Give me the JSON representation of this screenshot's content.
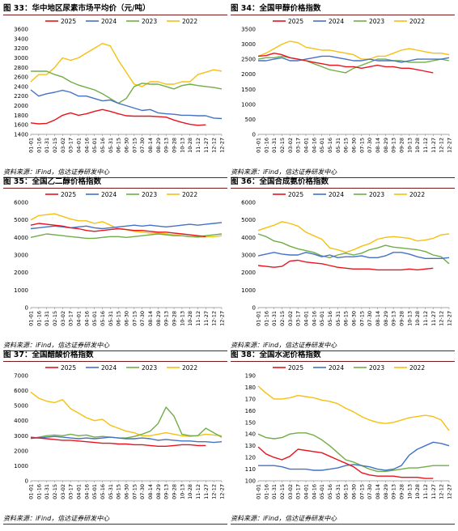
{
  "colors": {
    "2025": "#e8141e",
    "2024": "#4472c4",
    "2023": "#70ad47",
    "2022": "#f5c012"
  },
  "charts": [
    {
      "id": "fig33",
      "title": "图 33：华中地区尿素市场平均价（元/吨）",
      "source": "资料来源：iFind，信达证券研发中心",
      "chart_data": {
        "type": "line",
        "title": "华中地区尿素市场平均价（元/吨）",
        "x_ticks": [
          "01-01",
          "01-16",
          "01-31",
          "02-15",
          "03-02",
          "03-17",
          "04-01",
          "04-16",
          "05-01",
          "05-16",
          "05-31",
          "06-15",
          "06-30",
          "07-15",
          "07-30",
          "08-14",
          "08-29",
          "09-13",
          "09-28",
          "10-13",
          "10-28",
          "11-12",
          "11-27",
          "12-12",
          "12-27"
        ],
        "ylim": [
          1400,
          3600
        ],
        "y_ticks": [
          1400,
          1600,
          1800,
          2000,
          2200,
          2400,
          2600,
          2800,
          3000,
          3200,
          3400,
          3600
        ],
        "legend": "top",
        "series": [
          {
            "name": "2025",
            "values": [
              1640,
              1620,
              1630,
              1700,
              1800,
              1850,
              1800,
              1830,
              1880,
              1920,
              1880,
              1830,
              1790,
              1780,
              1780,
              1780,
              1770,
              1760,
              1700,
              1650,
              1610,
              1590,
              1600
            ]
          },
          {
            "name": "2024",
            "values": [
              2330,
              2200,
              2250,
              2280,
              2320,
              2280,
              2200,
              2200,
              2150,
              2100,
              2120,
              2050,
              2000,
              1950,
              1900,
              1920,
              1850,
              1830,
              1820,
              1800,
              1800,
              1790,
              1790,
              1740,
              1730
            ]
          },
          {
            "name": "2023",
            "values": [
              2720,
              2720,
              2720,
              2650,
              2600,
              2500,
              2430,
              2380,
              2330,
              2250,
              2150,
              2050,
              2150,
              2400,
              2470,
              2450,
              2450,
              2400,
              2350,
              2420,
              2450,
              2420,
              2400,
              2380,
              2350
            ]
          },
          {
            "name": "2022",
            "values": [
              2500,
              2650,
              2650,
              2800,
              3000,
              2950,
              3000,
              3100,
              3200,
              3300,
              3250,
              2950,
              2700,
              2450,
              2400,
              2500,
              2500,
              2450,
              2450,
              2500,
              2500,
              2650,
              2700,
              2750,
              2720
            ]
          }
        ]
      }
    },
    {
      "id": "fig34",
      "title": "图 34：全国甲醇价格指数",
      "source": "资料来源：iFind，信达证券研发中心",
      "chart_data": {
        "type": "line",
        "title": "全国甲醇价格指数",
        "x_ticks": [
          "01-01",
          "01-16",
          "01-31",
          "02-15",
          "03-02",
          "03-17",
          "04-01",
          "04-16",
          "05-01",
          "05-16",
          "05-31",
          "06-15",
          "06-30",
          "07-15",
          "07-30",
          "08-14",
          "08-29",
          "09-13",
          "09-28",
          "10-13",
          "10-28",
          "11-12",
          "11-27",
          "12-12",
          "12-27"
        ],
        "ylim": [
          0,
          3500
        ],
        "y_ticks": [
          0,
          500,
          1000,
          1500,
          2000,
          2500,
          3000,
          3500
        ],
        "legend": "top",
        "series": [
          {
            "name": "2025",
            "values": [
              2600,
              2620,
              2700,
              2650,
              2550,
              2500,
              2450,
              2400,
              2350,
              2300,
              2300,
              2250,
              2250,
              2200,
              2250,
              2300,
              2250,
              2250,
              2200,
              2200,
              2150,
              2100,
              2050
            ]
          },
          {
            "name": "2024",
            "values": [
              2450,
              2450,
              2500,
              2550,
              2450,
              2450,
              2500,
              2550,
              2600,
              2600,
              2550,
              2500,
              2450,
              2450,
              2500,
              2450,
              2450,
              2450,
              2400,
              2450,
              2500,
              2500,
              2500,
              2500,
              2550
            ]
          },
          {
            "name": "2023",
            "values": [
              2500,
              2550,
              2550,
              2600,
              2550,
              2500,
              2450,
              2350,
              2250,
              2150,
              2100,
              2050,
              2200,
              2300,
              2400,
              2500,
              2500,
              2450,
              2450,
              2400,
              2400,
              2400,
              2450,
              2500,
              2450
            ]
          },
          {
            "name": "2022",
            "values": [
              2600,
              2700,
              2850,
              3000,
              3100,
              3050,
              2900,
              2850,
              2800,
              2800,
              2750,
              2700,
              2650,
              2500,
              2500,
              2600,
              2600,
              2700,
              2800,
              2850,
              2800,
              2750,
              2700,
              2700,
              2650
            ]
          }
        ]
      }
    },
    {
      "id": "fig35",
      "title": "图 35：全国乙二醇价格指数",
      "source": "资料来源：iFind，信达证券研发中心",
      "chart_data": {
        "type": "line",
        "title": "全国乙二醇价格指数",
        "x_ticks": [
          "01-01",
          "01-16",
          "01-31",
          "02-15",
          "03-02",
          "03-17",
          "04-01",
          "04-16",
          "05-01",
          "05-16",
          "05-31",
          "06-15",
          "06-30",
          "07-15",
          "07-30",
          "08-14",
          "08-29",
          "09-13",
          "09-28",
          "10-13",
          "10-28",
          "11-12",
          "11-27",
          "12-12",
          "12-27"
        ],
        "ylim": [
          0,
          6000
        ],
        "y_ticks": [
          0,
          1000,
          2000,
          3000,
          4000,
          5000,
          6000
        ],
        "legend": "top",
        "series": [
          {
            "name": "2025",
            "values": [
              4700,
              4800,
              4750,
              4700,
              4650,
              4550,
              4500,
              4400,
              4350,
              4400,
              4450,
              4500,
              4450,
              4400,
              4400,
              4350,
              4300,
              4300,
              4250,
              4200,
              4150,
              4100,
              4050
            ]
          },
          {
            "name": "2024",
            "values": [
              4500,
              4550,
              4600,
              4650,
              4600,
              4550,
              4600,
              4650,
              4550,
              4500,
              4550,
              4600,
              4650,
              4700,
              4650,
              4700,
              4650,
              4600,
              4650,
              4700,
              4750,
              4700,
              4750,
              4800,
              4850
            ]
          },
          {
            "name": "2023",
            "values": [
              4000,
              4100,
              4200,
              4150,
              4100,
              4050,
              4000,
              3950,
              3950,
              4000,
              4050,
              4050,
              4000,
              4050,
              4100,
              4150,
              4200,
              4150,
              4100,
              4100,
              4050,
              4050,
              4100,
              4150,
              4200
            ]
          },
          {
            "name": "2022",
            "values": [
              5000,
              5250,
              5300,
              5350,
              5200,
              5050,
              4950,
              4950,
              4800,
              4900,
              4700,
              4500,
              4450,
              4350,
              4300,
              4250,
              4250,
              4200,
              4150,
              4100,
              4050,
              4000,
              4050,
              4050,
              4100
            ]
          }
        ]
      }
    },
    {
      "id": "fig36",
      "title": "图 36：全国合成氨价格指数",
      "source": "资料来源：iFind，信达证券研发中心",
      "chart_data": {
        "type": "line",
        "title": "全国合成氨价格指数",
        "x_ticks": [
          "01-01",
          "01-16",
          "01-31",
          "02-15",
          "03-02",
          "03-17",
          "04-01",
          "04-16",
          "05-01",
          "05-16",
          "05-31",
          "06-15",
          "06-30",
          "07-15",
          "07-30",
          "08-14",
          "08-29",
          "09-13",
          "09-28",
          "10-13",
          "10-28",
          "11-12",
          "11-27",
          "12-12",
          "12-27"
        ],
        "ylim": [
          0,
          6000
        ],
        "y_ticks": [
          0,
          1000,
          2000,
          3000,
          4000,
          5000,
          6000
        ],
        "legend": "top",
        "series": [
          {
            "name": "2025",
            "values": [
              2400,
              2350,
              2300,
              2350,
              2650,
              2700,
              2600,
              2550,
              2500,
              2400,
              2300,
              2250,
              2200,
              2200,
              2200,
              2150,
              2150,
              2150,
              2150,
              2200,
              2150,
              2200,
              2250
            ]
          },
          {
            "name": "2024",
            "values": [
              2950,
              3050,
              3150,
              3050,
              3000,
              3000,
              3150,
              3050,
              2900,
              3000,
              2850,
              2900,
              2900,
              2950,
              2850,
              2850,
              2950,
              3150,
              3150,
              3050,
              2900,
              2800,
              2800,
              2800,
              2850
            ]
          },
          {
            "name": "2023",
            "values": [
              4200,
              4050,
              3800,
              3700,
              3500,
              3350,
              3250,
              3150,
              2950,
              2850,
              3000,
              3100,
              3000,
              3100,
              3300,
              3400,
              3550,
              3450,
              3400,
              3350,
              3300,
              3200,
              3000,
              2900,
              2500
            ]
          },
          {
            "name": "2022",
            "values": [
              4400,
              4550,
              4700,
              4900,
              4800,
              4650,
              4300,
              4100,
              3900,
              3400,
              3300,
              3150,
              3300,
              3500,
              3650,
              3900,
              4000,
              4050,
              4000,
              3950,
              3800,
              3850,
              3950,
              4150,
              4200
            ]
          }
        ]
      }
    },
    {
      "id": "fig37",
      "title": "图 37：全国醋酸价格指数",
      "source": "资料来源：iFind，信达证券研发中心",
      "chart_data": {
        "type": "line",
        "title": "全国醋酸价格指数",
        "x_ticks": [
          "01-01",
          "01-16",
          "01-31",
          "02-15",
          "03-02",
          "03-17",
          "04-01",
          "04-16",
          "05-01",
          "05-16",
          "05-31",
          "06-15",
          "06-30",
          "07-15",
          "07-30",
          "08-14",
          "08-29",
          "09-13",
          "09-28",
          "10-13",
          "10-28",
          "11-12",
          "11-27",
          "12-12",
          "12-27"
        ],
        "ylim": [
          0,
          7000
        ],
        "y_ticks": [
          0,
          1000,
          2000,
          3000,
          4000,
          5000,
          6000,
          7000
        ],
        "legend": "top",
        "series": [
          {
            "name": "2025",
            "values": [
              2850,
              2850,
              2800,
              2750,
              2700,
              2700,
              2650,
              2600,
              2550,
              2500,
              2500,
              2450,
              2450,
              2400,
              2400,
              2350,
              2300,
              2300,
              2350,
              2400,
              2400,
              2350,
              2350
            ]
          },
          {
            "name": "2024",
            "values": [
              2900,
              2850,
              2900,
              2950,
              2900,
              2850,
              2800,
              2850,
              2800,
              2850,
              2900,
              2850,
              2800,
              2800,
              2850,
              2800,
              2700,
              2750,
              2700,
              2650,
              2650,
              2600,
              2600,
              2550,
              2600
            ]
          },
          {
            "name": "2023",
            "values": [
              2800,
              2900,
              3000,
              3050,
              3000,
              3100,
              3000,
              3050,
              2900,
              2950,
              2900,
              2850,
              2850,
              2950,
              3100,
              3300,
              3800,
              4900,
              4300,
              3100,
              3000,
              3000,
              3500,
              3200,
              2900
            ]
          },
          {
            "name": "2022",
            "values": [
              5900,
              5500,
              5300,
              5200,
              5400,
              4800,
              4500,
              4200,
              4000,
              4100,
              3700,
              3500,
              3300,
              3200,
              3000,
              3000,
              3100,
              3200,
              3100,
              3000,
              2950,
              3000,
              3100,
              3050,
              3000
            ]
          }
        ]
      }
    },
    {
      "id": "fig38",
      "title": "图 38：全国水泥价格指数",
      "source": "资料来源：iFind，信达证券研发中心",
      "chart_data": {
        "type": "line",
        "title": "全国水泥价格指数",
        "x_ticks": [
          "01-01",
          "01-16",
          "01-31",
          "02-15",
          "03-02",
          "03-17",
          "04-01",
          "04-16",
          "05-01",
          "05-16",
          "05-31",
          "06-15",
          "06-30",
          "07-15",
          "07-30",
          "08-14",
          "08-29",
          "09-13",
          "09-28",
          "10-13",
          "10-28",
          "11-12",
          "11-27",
          "12-12",
          "12-27"
        ],
        "ylim": [
          100,
          190
        ],
        "y_ticks": [
          100,
          110,
          120,
          130,
          140,
          150,
          160,
          170,
          180,
          190
        ],
        "legend": "top",
        "series": [
          {
            "name": "2025",
            "values": [
              129,
              123,
              120,
              118,
              121,
              127,
              126,
              125,
              124,
              121,
              118,
              115,
              112,
              107,
              105,
              104,
              104,
              104,
              103,
              103,
              103,
              102,
              102
            ]
          },
          {
            "name": "2024",
            "values": [
              113,
              113,
              113,
              112,
              110,
              110,
              110,
              109,
              109,
              110,
              111,
              113,
              114,
              113,
              112,
              110,
              109,
              110,
              113,
              122,
              127,
              130,
              133,
              132,
              130
            ]
          },
          {
            "name": "2023",
            "values": [
              140,
              137,
              136,
              137,
              140,
              141,
              141,
              139,
              135,
              130,
              124,
              118,
              116,
              113,
              110,
              108,
              108,
              109,
              110,
              111,
              111,
              112,
              113,
              113,
              113
            ]
          },
          {
            "name": "2022",
            "values": [
              181,
              175,
              170,
              170,
              171,
              173,
              172,
              171,
              169,
              168,
              166,
              162,
              159,
              155,
              152,
              150,
              149,
              150,
              152,
              154,
              155,
              156,
              155,
              152,
              143
            ]
          }
        ]
      }
    }
  ]
}
